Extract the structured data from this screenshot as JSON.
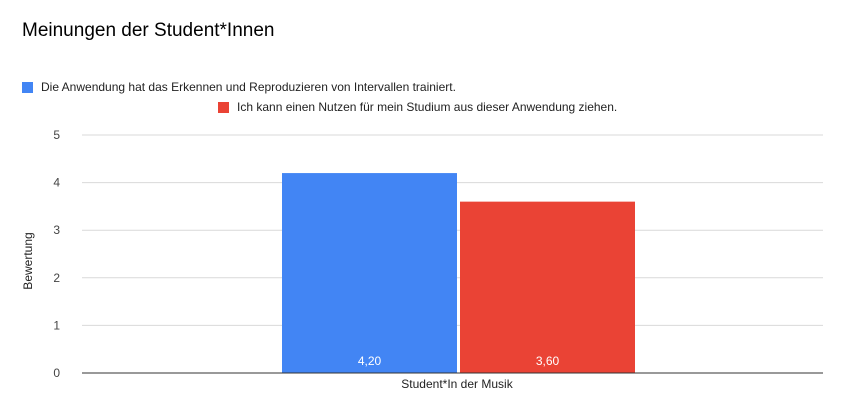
{
  "chart_data": {
    "type": "bar",
    "title": "Meinungen der Student*Innen",
    "xlabel": "Student*In der Musik",
    "ylabel": "Bewertung",
    "categories": [
      "Student*In der Musik"
    ],
    "series": [
      {
        "name": "Die Anwendung hat das Erkennen und Reproduzieren von Intervallen trainiert.",
        "values": [
          4.2
        ],
        "label": "4,20",
        "color": "#4285f4"
      },
      {
        "name": "Ich kann einen Nutzen für mein Studium aus dieser Anwendung ziehen.",
        "values": [
          3.6
        ],
        "label": "3,60",
        "color": "#ea4335"
      }
    ],
    "ylim": [
      0,
      5
    ],
    "yticks": [
      "0",
      "1",
      "2",
      "3",
      "4",
      "5"
    ],
    "grid": true,
    "legend_position": "top"
  }
}
